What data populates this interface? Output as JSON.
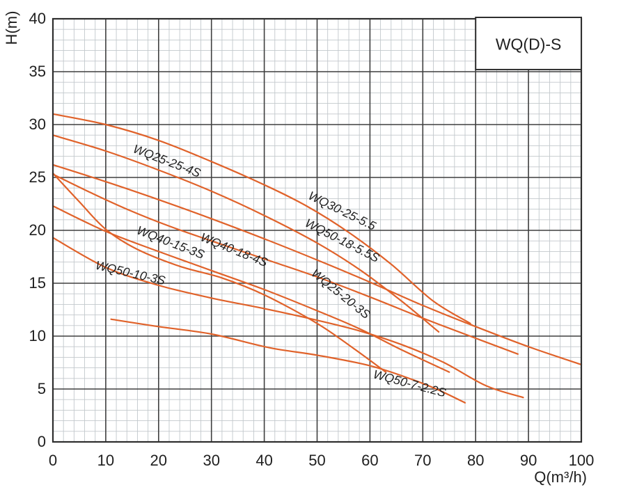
{
  "chart": {
    "legend_label": "WQ(D)-S",
    "colors": {
      "curve": "#e0622a",
      "major_grid": "#3f3f3f",
      "minor_grid": "#c2c8cc",
      "border": "#2e2e2e",
      "text": "#1f1f1f",
      "background": "#ffffff"
    }
  },
  "chart_data": {
    "type": "line",
    "title": "",
    "xlabel": "Q(m³/h)",
    "ylabel": "H(m)",
    "xlim": [
      0,
      100
    ],
    "ylim": [
      0,
      40
    ],
    "x_major_step": 10,
    "x_minor_step": 2,
    "y_major_step": 5,
    "y_minor_step": 1,
    "x_ticks": [
      "0",
      "10",
      "20",
      "30",
      "40",
      "50",
      "60",
      "70",
      "80",
      "90",
      "100"
    ],
    "y_ticks": [
      "0",
      "5",
      "10",
      "15",
      "20",
      "25",
      "30",
      "35",
      "40"
    ],
    "grid": "on",
    "legend_position": "top-right",
    "series": [
      {
        "name": "WQ30-25-5.5",
        "points": [
          [
            0,
            31
          ],
          [
            10,
            30
          ],
          [
            20,
            28.5
          ],
          [
            30,
            26.5
          ],
          [
            40,
            24.3
          ],
          [
            48,
            22.3
          ],
          [
            56,
            19.8
          ],
          [
            64,
            16.8
          ],
          [
            72,
            13.3
          ],
          [
            79,
            11.2
          ]
        ],
        "label_q": 54.4,
        "label_h": 21.5,
        "label_rot": 26
      },
      {
        "name": "WQ25-25-4S",
        "points": [
          [
            0,
            29
          ],
          [
            10,
            27.5
          ],
          [
            20,
            25.7
          ],
          [
            30,
            23.7
          ],
          [
            40,
            21.4
          ],
          [
            50,
            18.8
          ],
          [
            58,
            16.3
          ],
          [
            66,
            13.3
          ],
          [
            73,
            10.4
          ]
        ],
        "label_q": 21.3,
        "label_h": 26.2,
        "label_rot": 21
      },
      {
        "name": "WQ50-18-5.5S",
        "points": [
          [
            0,
            26.2
          ],
          [
            10,
            24.6
          ],
          [
            20,
            22.9
          ],
          [
            30,
            21.1
          ],
          [
            40,
            19.2
          ],
          [
            50,
            17.2
          ],
          [
            60,
            15.1
          ],
          [
            70,
            12.9
          ],
          [
            80,
            10.9
          ],
          [
            90,
            9.0
          ],
          [
            100,
            7.3
          ]
        ],
        "label_q": 54.4,
        "label_h": 18.7,
        "label_rot": 27
      },
      {
        "name": "WQ40-18-4S",
        "points": [
          [
            0,
            25.3
          ],
          [
            7,
            23.6
          ],
          [
            14,
            22.0
          ],
          [
            22,
            20.4
          ],
          [
            30,
            19.0
          ],
          [
            40,
            17.3
          ],
          [
            50,
            15.6
          ],
          [
            60,
            13.7
          ],
          [
            70,
            11.7
          ],
          [
            80,
            9.8
          ],
          [
            88,
            8.3
          ]
        ],
        "label_q": 34,
        "label_h": 17.8,
        "label_rot": 22
      },
      {
        "name": "WQ25-20-3S",
        "points": [
          [
            0,
            25.4
          ],
          [
            5,
            22.7
          ],
          [
            10,
            20.1
          ],
          [
            16,
            18.2
          ],
          [
            24,
            16.6
          ],
          [
            32,
            15.5
          ],
          [
            40,
            13.9
          ],
          [
            50,
            11.2
          ],
          [
            57,
            8.8
          ],
          [
            63,
            6.6
          ]
        ],
        "label_q": 54,
        "label_h": 13.7,
        "label_rot": 39
      },
      {
        "name": "WQ40-15-3S",
        "points": [
          [
            0,
            22.3
          ],
          [
            10,
            19.9
          ],
          [
            20,
            18.0
          ],
          [
            30,
            16.2
          ],
          [
            40,
            14.4
          ],
          [
            50,
            12.4
          ],
          [
            58,
            10.7
          ],
          [
            66,
            8.7
          ],
          [
            75,
            6.6
          ]
        ],
        "label_q": 22,
        "label_h": 18.5,
        "label_rot": 21
      },
      {
        "name": "WQ50-10-3S",
        "points": [
          [
            0,
            19.3
          ],
          [
            10,
            16.5
          ],
          [
            20,
            14.8
          ],
          [
            30,
            13.6
          ],
          [
            40,
            12.6
          ],
          [
            50,
            11.5
          ],
          [
            58,
            10.5
          ],
          [
            66,
            9.2
          ],
          [
            74,
            7.5
          ],
          [
            82,
            5.3
          ],
          [
            89,
            4.2
          ]
        ],
        "label_q": 14.5,
        "label_h": 15.6,
        "label_rot": 13
      },
      {
        "name": "WQ50-7-2.2S",
        "points": [
          [
            11,
            11.6
          ],
          [
            20,
            10.9
          ],
          [
            30,
            10.2
          ],
          [
            41,
            8.9
          ],
          [
            50,
            8.2
          ],
          [
            60,
            7.2
          ],
          [
            68,
            5.9
          ],
          [
            73,
            4.9
          ],
          [
            78,
            3.7
          ]
        ],
        "label_q": 67.3,
        "label_h": 5.15,
        "label_rot": 15
      }
    ]
  }
}
